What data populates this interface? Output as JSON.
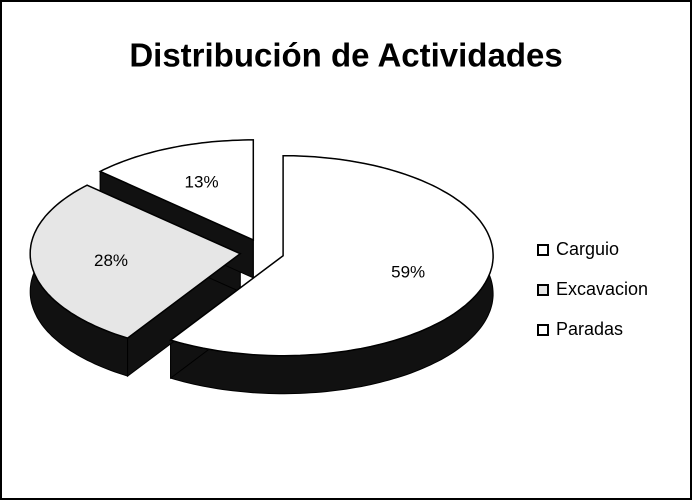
{
  "chart_data": {
    "type": "pie",
    "title": "Distribución de Actividades",
    "categories": [
      "Carguio",
      "Excavacion",
      "Paradas"
    ],
    "values": [
      59,
      28,
      13
    ],
    "value_labels": [
      "59%",
      "28%",
      "13%"
    ],
    "colors": [
      "#ffffff",
      "#e6e6e6",
      "#ffffff"
    ],
    "legend": "right",
    "exploded": true,
    "three_d": true
  }
}
